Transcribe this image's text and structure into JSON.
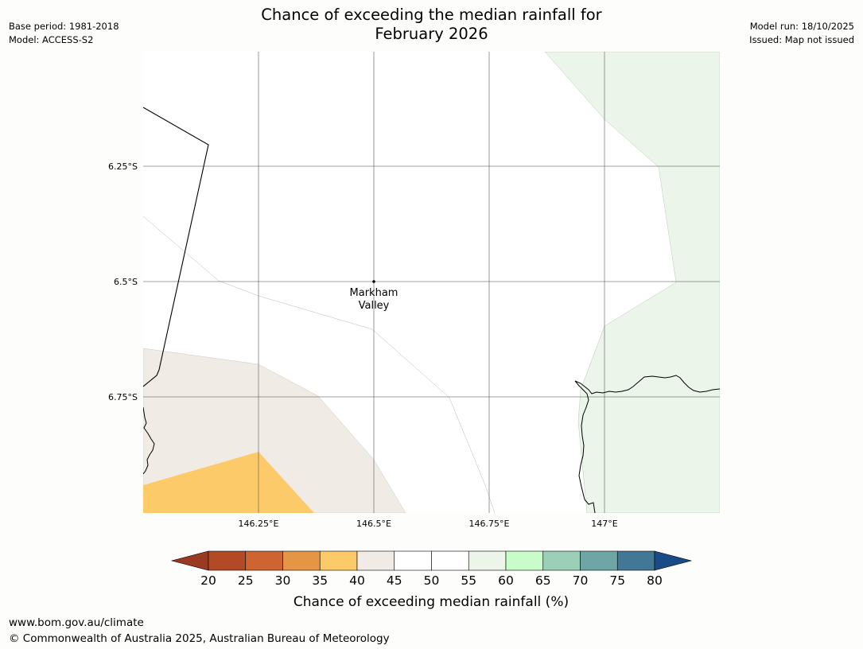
{
  "header": {
    "title_line1": "Chance of exceeding the median rainfall for",
    "title_line2": "February 2026",
    "base_period": "Base period: 1981-2018",
    "model": "Model: ACCESS-S2",
    "model_run": "Model run: 18/10/2025",
    "issued": "Issued: Map not issued"
  },
  "map": {
    "lat_labels": [
      "6.25°S",
      "6.5°S",
      "6.75°S"
    ],
    "lon_labels": [
      "146.25°E",
      "146.5°E",
      "146.75°E",
      "147°E"
    ],
    "place": {
      "line1": "Markham",
      "line2": "Valley"
    },
    "region_colors": {
      "40-45": "#f1ebe6",
      "35-40": "#fdca69",
      "55-60": "#ebf5ea"
    }
  },
  "colorbar": {
    "ticks": [
      "20",
      "25",
      "30",
      "35",
      "40",
      "45",
      "50",
      "55",
      "60",
      "65",
      "70",
      "75",
      "80"
    ],
    "colors": [
      "#9b3a23",
      "#b34a26",
      "#cd6432",
      "#e49546",
      "#fdca69",
      "#f1ebe6",
      "#ffffff",
      "#ffffff",
      "#ebf5ea",
      "#c8fcc8",
      "#9ccfb8",
      "#6ea6a6",
      "#427896",
      "#184b88"
    ],
    "title": "Chance of exceeding median rainfall (%)"
  },
  "footer": {
    "url": "www.bom.gov.au/climate",
    "copyright": "© Commonwealth of Australia 2025, Australian Bureau of Meteorology"
  }
}
